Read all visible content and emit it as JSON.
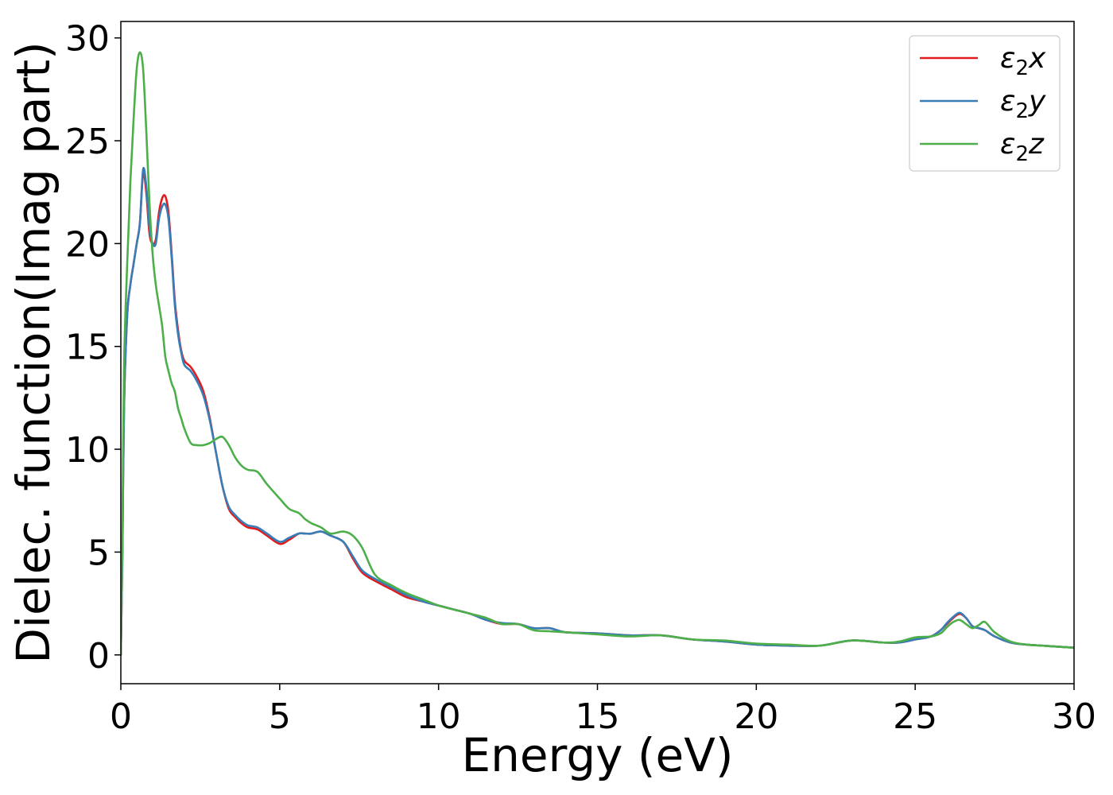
{
  "chart_data": {
    "type": "line",
    "xlabel": "Energy (eV)",
    "ylabel": "Dielec. function(Imag part)",
    "xlim": [
      0,
      30
    ],
    "ylim": [
      -1.4,
      30.8
    ],
    "xticks": [
      0,
      5,
      10,
      15,
      20,
      25,
      30
    ],
    "yticks": [
      0,
      5,
      10,
      15,
      20,
      25,
      30
    ],
    "grid": false,
    "legend_position": "top-right",
    "series": [
      {
        "name": "ε2x",
        "legend_base": "ε",
        "legend_sub": "2",
        "legend_tail": "x",
        "color": "#e41a1c",
        "x": [
          0,
          0.05,
          0.1,
          0.2,
          0.3,
          0.4,
          0.5,
          0.6,
          0.7,
          0.8,
          0.9,
          1.0,
          1.1,
          1.2,
          1.3,
          1.4,
          1.5,
          1.6,
          1.7,
          1.8,
          1.9,
          2.0,
          2.2,
          2.4,
          2.6,
          2.8,
          3.0,
          3.2,
          3.4,
          3.6,
          3.8,
          4.0,
          4.3,
          4.6,
          5.0,
          5.3,
          5.6,
          5.8,
          6.0,
          6.3,
          6.6,
          7.0,
          7.3,
          7.6,
          8.0,
          8.5,
          9.0,
          9.5,
          10.0,
          10.5,
          11.0,
          11.5,
          12.0,
          12.5,
          13.0,
          13.5,
          14.0,
          15.0,
          16.0,
          17.0,
          18.0,
          19.0,
          20.0,
          21.0,
          22.0,
          23.0,
          24.0,
          24.5,
          25.0,
          25.5,
          25.8,
          26.0,
          26.2,
          26.4,
          26.6,
          26.8,
          27.0,
          27.2,
          27.5,
          28.0,
          28.5,
          29.0,
          29.5,
          30.0
        ],
        "values": [
          0,
          5,
          12,
          16.5,
          18,
          19,
          20,
          21,
          23.4,
          22.5,
          20.5,
          20,
          20.2,
          21.5,
          22.2,
          22.3,
          21.5,
          19.5,
          17.2,
          15.8,
          14.8,
          14.3,
          14.0,
          13.5,
          12.8,
          11.5,
          9.8,
          8.2,
          7.1,
          6.7,
          6.4,
          6.2,
          6.1,
          5.8,
          5.4,
          5.6,
          5.9,
          5.9,
          5.9,
          6.0,
          5.8,
          5.5,
          4.7,
          4.0,
          3.6,
          3.2,
          2.8,
          2.6,
          2.4,
          2.2,
          2.0,
          1.7,
          1.5,
          1.5,
          1.3,
          1.3,
          1.1,
          1.05,
          0.95,
          0.95,
          0.75,
          0.65,
          0.5,
          0.45,
          0.45,
          0.7,
          0.6,
          0.6,
          0.75,
          0.9,
          1.2,
          1.5,
          1.8,
          2.0,
          1.8,
          1.4,
          1.3,
          1.2,
          0.9,
          0.6,
          0.5,
          0.45,
          0.4,
          0.35
        ]
      },
      {
        "name": "ε2y",
        "legend_base": "ε",
        "legend_sub": "2",
        "legend_tail": "y",
        "color": "#377eb8",
        "x": [
          0,
          0.05,
          0.1,
          0.2,
          0.3,
          0.4,
          0.5,
          0.6,
          0.7,
          0.8,
          0.9,
          1.0,
          1.1,
          1.2,
          1.3,
          1.4,
          1.5,
          1.6,
          1.7,
          1.8,
          1.9,
          2.0,
          2.2,
          2.4,
          2.6,
          2.8,
          3.0,
          3.2,
          3.4,
          3.6,
          3.8,
          4.0,
          4.3,
          4.6,
          5.0,
          5.3,
          5.6,
          5.8,
          6.0,
          6.3,
          6.6,
          7.0,
          7.3,
          7.6,
          8.0,
          8.5,
          9.0,
          9.5,
          10.0,
          10.5,
          11.0,
          11.5,
          12.0,
          12.5,
          13.0,
          13.5,
          14.0,
          15.0,
          16.0,
          17.0,
          18.0,
          19.0,
          20.0,
          21.0,
          22.0,
          23.0,
          24.0,
          24.5,
          25.0,
          25.5,
          25.8,
          26.0,
          26.2,
          26.4,
          26.6,
          26.8,
          27.0,
          27.2,
          27.5,
          28.0,
          28.5,
          29.0,
          29.5,
          30.0
        ],
        "values": [
          0,
          5,
          12,
          16.5,
          18,
          19,
          20,
          21,
          23.6,
          22.8,
          20.8,
          20.0,
          20.0,
          21.2,
          21.8,
          21.9,
          21.2,
          19.3,
          17.0,
          15.6,
          14.7,
          14.1,
          13.8,
          13.3,
          12.6,
          11.4,
          9.8,
          8.2,
          7.2,
          6.8,
          6.5,
          6.3,
          6.2,
          5.9,
          5.5,
          5.7,
          5.9,
          5.9,
          5.9,
          6.0,
          5.8,
          5.5,
          4.8,
          4.1,
          3.7,
          3.3,
          2.9,
          2.6,
          2.4,
          2.2,
          2.0,
          1.7,
          1.55,
          1.5,
          1.3,
          1.3,
          1.1,
          1.05,
          0.95,
          0.95,
          0.75,
          0.65,
          0.5,
          0.45,
          0.45,
          0.7,
          0.6,
          0.6,
          0.75,
          0.9,
          1.2,
          1.55,
          1.85,
          2.05,
          1.8,
          1.4,
          1.3,
          1.2,
          0.9,
          0.6,
          0.5,
          0.45,
          0.4,
          0.35
        ]
      },
      {
        "name": "ε2z",
        "legend_base": "ε",
        "legend_sub": "2",
        "legend_tail": "z",
        "color": "#4daf4a",
        "x": [
          0,
          0.05,
          0.1,
          0.2,
          0.3,
          0.4,
          0.5,
          0.6,
          0.7,
          0.8,
          0.9,
          1.0,
          1.1,
          1.2,
          1.3,
          1.4,
          1.5,
          1.6,
          1.7,
          1.8,
          1.9,
          2.0,
          2.2,
          2.4,
          2.6,
          2.8,
          3.0,
          3.2,
          3.4,
          3.6,
          3.8,
          4.0,
          4.3,
          4.6,
          5.0,
          5.3,
          5.6,
          5.8,
          6.0,
          6.3,
          6.6,
          7.0,
          7.3,
          7.6,
          8.0,
          8.5,
          9.0,
          9.5,
          10.0,
          10.5,
          11.0,
          11.5,
          12.0,
          12.5,
          13.0,
          13.5,
          14.0,
          15.0,
          16.0,
          17.0,
          18.0,
          19.0,
          20.0,
          21.0,
          22.0,
          23.0,
          24.0,
          24.5,
          25.0,
          25.5,
          25.8,
          26.0,
          26.2,
          26.4,
          26.6,
          26.8,
          27.0,
          27.2,
          27.5,
          28.0,
          28.5,
          29.0,
          29.5,
          30.0
        ],
        "values": [
          0,
          6,
          14,
          19,
          23,
          26,
          28.5,
          29.3,
          28.5,
          25.5,
          22,
          19.5,
          18,
          17,
          16,
          14.5,
          13.8,
          13.2,
          12.8,
          12.0,
          11.5,
          11.0,
          10.3,
          10.2,
          10.2,
          10.3,
          10.5,
          10.6,
          10.2,
          9.6,
          9.2,
          9.0,
          8.9,
          8.3,
          7.6,
          7.1,
          6.9,
          6.6,
          6.4,
          6.2,
          5.9,
          6.0,
          5.8,
          5.2,
          3.9,
          3.4,
          3.0,
          2.7,
          2.4,
          2.2,
          2.0,
          1.8,
          1.5,
          1.5,
          1.2,
          1.15,
          1.1,
          1.0,
          0.9,
          0.95,
          0.75,
          0.7,
          0.55,
          0.5,
          0.45,
          0.7,
          0.6,
          0.65,
          0.85,
          0.9,
          1.05,
          1.35,
          1.6,
          1.7,
          1.5,
          1.3,
          1.45,
          1.6,
          1.1,
          0.65,
          0.5,
          0.45,
          0.4,
          0.35
        ]
      }
    ]
  }
}
